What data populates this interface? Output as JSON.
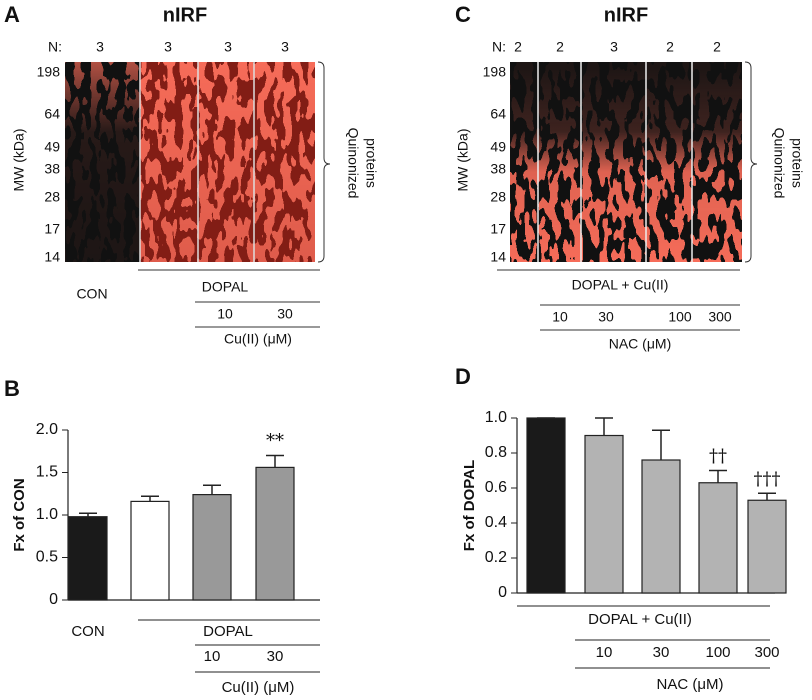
{
  "gel_a": {
    "label": "A",
    "title": "nIRF",
    "n_label": "N:",
    "n_values": [
      3,
      3,
      3,
      3
    ],
    "y_label": "MW (kDa)",
    "mw_ticks": [
      198,
      64,
      49,
      38,
      28,
      17,
      14
    ],
    "bracket_label": [
      "Quinonized",
      "proteins"
    ],
    "lane_label": "CON",
    "group_label": "DOPAL",
    "concentrations": [
      10,
      30
    ],
    "conc_label": "Cu(II) (μM)"
  },
  "gel_c": {
    "label": "C",
    "title": "nIRF",
    "n_label": "N:",
    "n_values": [
      2,
      2,
      3,
      2,
      2
    ],
    "y_label": "MW (kDa)",
    "mw_ticks": [
      198,
      64,
      49,
      38,
      28,
      17,
      14
    ],
    "bracket_label": [
      "Quinonized",
      "proteins"
    ],
    "group_label": "DOPAL + Cu(II)",
    "concentrations": [
      10,
      30,
      100,
      300
    ],
    "conc_label": "NAC (μM)"
  },
  "chart_data": [
    {
      "type": "bar",
      "label": "B",
      "y_label": "Fx of CON",
      "categories": [
        "CON",
        null,
        "10",
        "30"
      ],
      "group_labels": [
        "DOPAL",
        "Cu(II) (μM)"
      ],
      "values": [
        0.98,
        1.16,
        1.24,
        1.56
      ],
      "errors": [
        0.04,
        0.06,
        0.11,
        0.14
      ],
      "colors": [
        "#1a1a1a",
        "#ffffff",
        "#999999",
        "#999999"
      ],
      "significance": [
        null,
        null,
        null,
        "**"
      ],
      "ylim": [
        0,
        2
      ],
      "yticks": [
        0,
        0.5,
        {
          "value": 1,
          "label": "1.0"
        },
        1.5,
        {
          "value": 2,
          "label": "2.0"
        }
      ]
    },
    {
      "type": "bar",
      "label": "D",
      "y_label": "Fx of DOPAL",
      "categories": [
        null,
        "10",
        "30",
        "100",
        "300"
      ],
      "group_labels": [
        "DOPAL + Cu(II)",
        "NAC (μM)"
      ],
      "values": [
        1.0,
        0.9,
        0.76,
        0.63,
        0.53
      ],
      "errors": [
        0,
        0.1,
        0.17,
        0.07,
        0.04
      ],
      "colors": [
        "#1a1a1a",
        "#b3b3b3",
        "#b3b3b3",
        "#b3b3b3",
        "#b3b3b3"
      ],
      "significance": [
        null,
        null,
        null,
        "††",
        "†††"
      ],
      "ylim": [
        0,
        1
      ],
      "yticks": [
        0,
        0.2,
        0.4,
        0.6,
        0.8,
        {
          "value": 1,
          "label": "1.0"
        }
      ]
    }
  ]
}
